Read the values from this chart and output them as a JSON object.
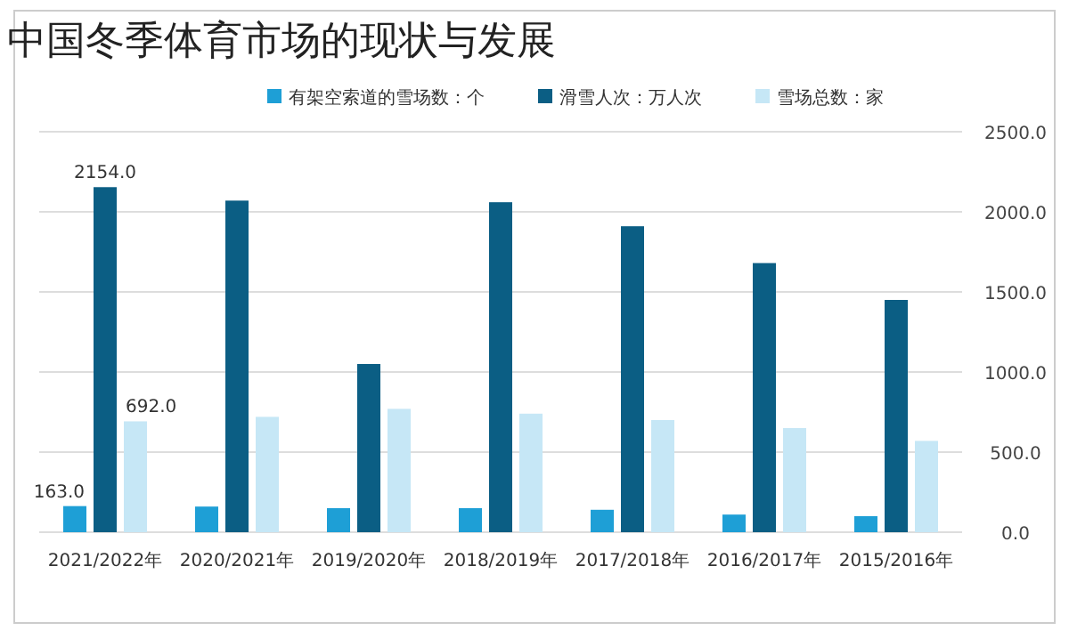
{
  "chart_data": {
    "type": "bar",
    "title": "中国冬季体育市场的现状与发展",
    "categories": [
      "2021/2022年",
      "2020/2021年",
      "2019/2020年",
      "2018/2019年",
      "2017/2018年",
      "2016/2017年",
      "2015/2016年"
    ],
    "series": [
      {
        "name": "有架空索道的雪场数：个",
        "color": "#1e9fd6",
        "values": [
          163,
          160,
          150,
          150,
          140,
          110,
          100
        ],
        "value_labels": [
          "163.0",
          null,
          null,
          null,
          null,
          null,
          null
        ]
      },
      {
        "name": "滑雪人次：万人次",
        "color": "#0b5e84",
        "values": [
          2154,
          2070,
          1050,
          2060,
          1910,
          1680,
          1450
        ],
        "value_labels": [
          "2154.0",
          null,
          null,
          null,
          null,
          null,
          null
        ]
      },
      {
        "name": "雪场总数：家",
        "color": "#c6e7f6",
        "values": [
          692,
          720,
          770,
          740,
          700,
          650,
          570
        ],
        "value_labels": [
          "692.0",
          null,
          null,
          null,
          null,
          null,
          null
        ]
      }
    ],
    "ylim": [
      0,
      2500
    ],
    "yticks": [
      {
        "value": 0,
        "label": "0.0"
      },
      {
        "value": 500,
        "label": "500.0"
      },
      {
        "value": 1000,
        "label": "1000.0"
      },
      {
        "value": 1500,
        "label": "1500.0"
      },
      {
        "value": 2000,
        "label": "2000.0"
      },
      {
        "value": 2500,
        "label": "2500.0"
      }
    ],
    "grid": "y",
    "legend": "top"
  }
}
